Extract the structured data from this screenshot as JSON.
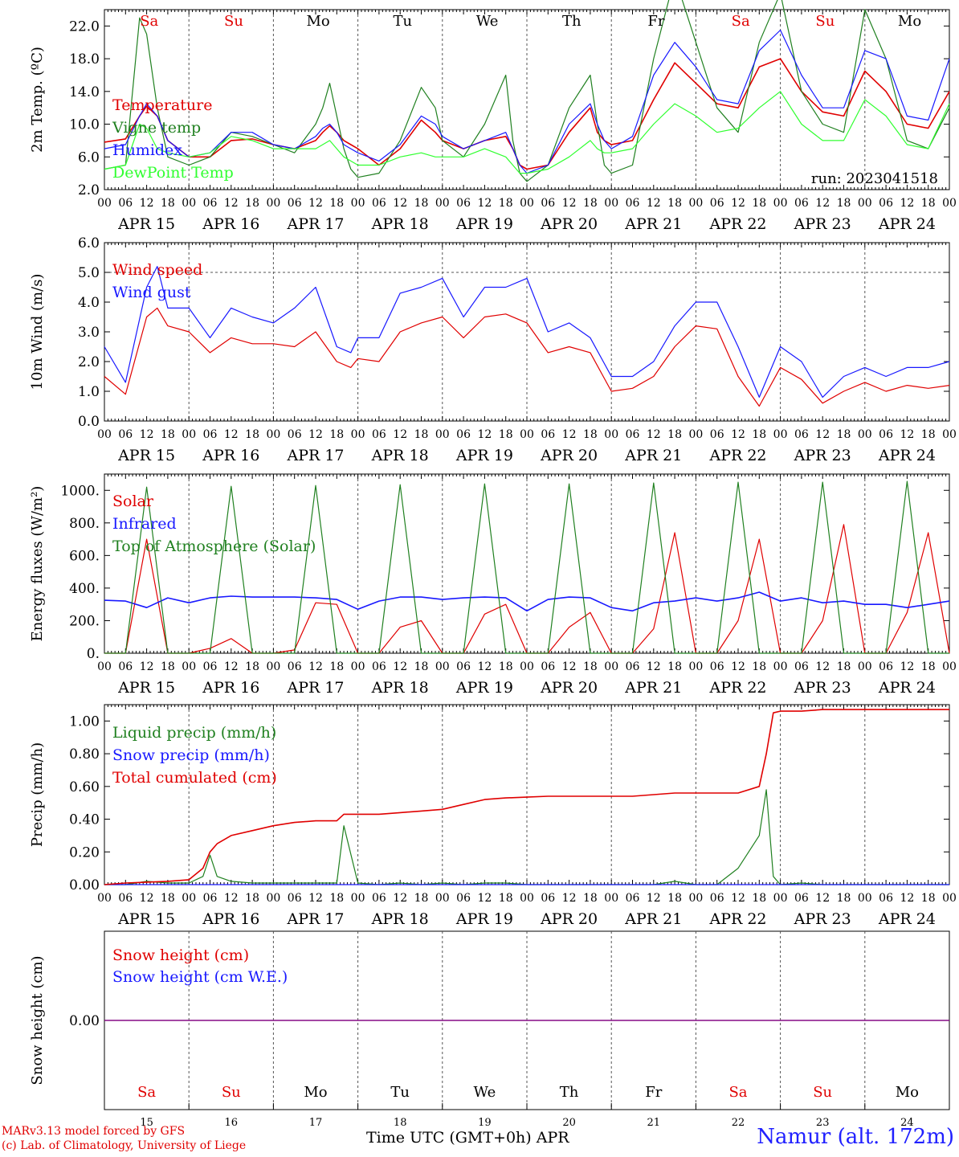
{
  "day_letters": [
    {
      "label": "Sa",
      "color": "#e00000"
    },
    {
      "label": "Su",
      "color": "#e00000"
    },
    {
      "label": "Mo",
      "color": "#000000"
    },
    {
      "label": "Tu",
      "color": "#000000"
    },
    {
      "label": "We",
      "color": "#000000"
    },
    {
      "label": "Th",
      "color": "#000000"
    },
    {
      "label": "Fr",
      "color": "#000000"
    },
    {
      "label": "Sa",
      "color": "#e00000"
    },
    {
      "label": "Su",
      "color": "#e00000"
    },
    {
      "label": "Mo",
      "color": "#000000"
    }
  ],
  "date_labels": [
    "APR 15",
    "APR 16",
    "APR 17",
    "APR 18",
    "APR 19",
    "APR 20",
    "APR 21",
    "APR 22",
    "APR 23",
    "APR 24"
  ],
  "hour_ticks": [
    "00",
    "06",
    "12",
    "18"
  ],
  "day_numbers": [
    "15",
    "16",
    "17",
    "18",
    "19",
    "20",
    "21",
    "22",
    "23",
    "24"
  ],
  "footer": {
    "credit_line1": "MARv3.13 model forced by GFS",
    "credit_line2": "(c) Lab. of Climatology, University of Liege",
    "xaxis_title": "Time UTC (GMT+0h) APR",
    "station": "Namur (alt. 172m)"
  },
  "colors": {
    "red": "#e00000",
    "green": "#208020",
    "lightgreen": "#30ff30",
    "blue": "#1818ff",
    "purple": "#800080"
  },
  "chart_data": [
    {
      "type": "line",
      "ylabel": "2m Temp. (ºC)",
      "yticks": [
        "2.0",
        "6.0",
        "10.0",
        "14.0",
        "18.0",
        "22.0"
      ],
      "ylim": [
        2,
        24
      ],
      "annotation": "run: 2023041518",
      "x_hours_from_apr15_00utc": [
        0,
        6,
        10,
        12,
        15,
        18,
        24,
        30,
        36,
        42,
        48,
        54,
        60,
        62,
        64,
        66,
        68,
        70,
        72,
        78,
        84,
        90,
        94,
        96,
        102,
        108,
        114,
        116,
        118,
        120,
        126,
        132,
        138,
        140,
        142,
        144,
        150,
        156,
        162,
        168,
        174,
        180,
        186,
        192,
        198,
        204,
        210,
        216,
        222,
        228,
        234,
        240
      ],
      "series": [
        {
          "name": "Temperature",
          "color": "#e00000",
          "values": [
            7.8,
            8.2,
            11.0,
            12.2,
            11.0,
            8.0,
            6.0,
            6.0,
            8.0,
            8.2,
            7.5,
            7.0,
            8.0,
            9.0,
            9.8,
            9.0,
            8.0,
            7.5,
            7.0,
            5.0,
            7.0,
            10.5,
            9.0,
            8.0,
            7.0,
            8.0,
            8.5,
            7.0,
            5.0,
            4.5,
            5.0,
            9.0,
            12.0,
            9.0,
            8.0,
            7.5,
            8.0,
            13.0,
            17.5,
            15.0,
            12.5,
            12.0,
            17.0,
            18.0,
            14.0,
            11.5,
            11.0,
            16.5,
            14.0,
            10.0,
            9.5,
            14.0
          ]
        },
        {
          "name": "Vigne temp",
          "color": "#208020",
          "values": [
            4.5,
            5.0,
            23.0,
            21.0,
            12.0,
            6.0,
            5.0,
            6.0,
            9.0,
            8.5,
            7.5,
            6.5,
            10.0,
            12.0,
            15.0,
            11.0,
            7.0,
            4.5,
            3.5,
            4.0,
            8.0,
            14.5,
            12.0,
            8.0,
            6.0,
            10.0,
            16.0,
            8.0,
            4.0,
            3.0,
            5.0,
            12.0,
            16.0,
            10.0,
            5.0,
            4.0,
            5.0,
            18.0,
            28.0,
            20.0,
            12.0,
            9.0,
            20.0,
            26.0,
            14.0,
            10.0,
            9.0,
            24.0,
            18.0,
            8.0,
            7.0,
            12.0
          ]
        },
        {
          "name": "Humidex",
          "color": "#1818ff",
          "values": [
            7.0,
            7.5,
            11.0,
            12.5,
            11.0,
            8.0,
            6.0,
            6.5,
            9.0,
            9.0,
            7.5,
            7.0,
            8.5,
            9.5,
            10.0,
            9.0,
            7.5,
            7.0,
            6.5,
            5.5,
            7.5,
            11.0,
            10.0,
            8.5,
            7.0,
            8.0,
            9.0,
            7.0,
            5.0,
            4.0,
            5.0,
            10.0,
            12.5,
            10.0,
            8.0,
            7.0,
            8.5,
            16.0,
            20.0,
            17.0,
            13.0,
            12.5,
            19.0,
            21.5,
            16.0,
            12.0,
            12.0,
            19.0,
            18.0,
            11.0,
            10.5,
            18.0
          ]
        },
        {
          "name": "DewPoint Temp",
          "color": "#30ff30",
          "values": [
            4.5,
            5.0,
            10.0,
            9.5,
            7.0,
            6.5,
            6.0,
            6.5,
            8.5,
            8.0,
            7.0,
            7.0,
            7.0,
            7.5,
            8.0,
            7.0,
            6.0,
            5.5,
            5.0,
            5.0,
            6.0,
            6.5,
            6.0,
            6.0,
            6.0,
            7.0,
            6.0,
            5.0,
            4.0,
            4.0,
            4.5,
            6.0,
            8.0,
            7.0,
            6.5,
            6.5,
            7.0,
            10.0,
            12.5,
            11.0,
            9.0,
            9.5,
            12.0,
            14.0,
            10.0,
            8.0,
            8.0,
            13.0,
            11.0,
            7.5,
            7.0,
            12.5
          ]
        }
      ]
    },
    {
      "type": "line",
      "ylabel": "10m Wind (m/s)",
      "yticks": [
        "0.0",
        "1.0",
        "2.0",
        "3.0",
        "4.0",
        "5.0",
        "6.0"
      ],
      "ylim": [
        0,
        6
      ],
      "x_hours_from_apr15_00utc": [
        0,
        6,
        12,
        15,
        18,
        24,
        30,
        36,
        42,
        48,
        54,
        60,
        66,
        70,
        72,
        78,
        84,
        90,
        96,
        102,
        108,
        114,
        120,
        126,
        132,
        138,
        144,
        150,
        156,
        162,
        168,
        174,
        180,
        186,
        192,
        198,
        204,
        210,
        216,
        222,
        228,
        234,
        240
      ],
      "series": [
        {
          "name": "Wind speed",
          "color": "#e00000",
          "values": [
            1.5,
            0.9,
            3.5,
            3.8,
            3.2,
            3.0,
            2.3,
            2.8,
            2.6,
            2.6,
            2.5,
            3.0,
            2.0,
            1.8,
            2.1,
            2.0,
            3.0,
            3.3,
            3.5,
            2.8,
            3.5,
            3.6,
            3.3,
            2.3,
            2.5,
            2.3,
            1.0,
            1.1,
            1.5,
            2.5,
            3.2,
            3.1,
            1.5,
            0.5,
            1.8,
            1.4,
            0.6,
            1.0,
            1.3,
            1.0,
            1.2,
            1.1,
            1.2
          ]
        },
        {
          "name": "Wind gust",
          "color": "#1818ff",
          "values": [
            2.5,
            1.3,
            4.5,
            5.2,
            3.8,
            3.8,
            2.8,
            3.8,
            3.5,
            3.3,
            3.8,
            4.5,
            2.5,
            2.3,
            2.8,
            2.8,
            4.3,
            4.5,
            4.8,
            3.5,
            4.5,
            4.5,
            4.8,
            3.0,
            3.3,
            2.8,
            1.5,
            1.5,
            2.0,
            3.2,
            4.0,
            4.0,
            2.5,
            0.8,
            2.5,
            2.0,
            0.8,
            1.5,
            1.8,
            1.5,
            1.8,
            1.8,
            2.0
          ]
        }
      ]
    },
    {
      "type": "line",
      "ylabel": "Energy fluxes (W/m²)",
      "yticks": [
        "0.",
        "200.",
        "400.",
        "600.",
        "800.",
        "1000."
      ],
      "ylim": [
        0,
        1100
      ],
      "x_hours_from_apr15_00utc": [
        0,
        6,
        12,
        18,
        24,
        30,
        36,
        42,
        48,
        54,
        60,
        66,
        72,
        78,
        84,
        90,
        96,
        102,
        108,
        114,
        120,
        126,
        132,
        138,
        144,
        150,
        156,
        162,
        168,
        174,
        180,
        186,
        192,
        198,
        204,
        210,
        216,
        222,
        228,
        234,
        240
      ],
      "series": [
        {
          "name": "Solar",
          "color": "#e00000",
          "values": [
            0,
            0,
            700,
            0,
            0,
            30,
            90,
            0,
            0,
            20,
            310,
            300,
            0,
            0,
            160,
            200,
            0,
            0,
            240,
            300,
            0,
            0,
            160,
            250,
            0,
            0,
            150,
            740,
            0,
            0,
            200,
            700,
            0,
            0,
            200,
            790,
            0,
            0,
            250,
            740,
            0
          ]
        },
        {
          "name": "Infrared",
          "color": "#1818ff",
          "values": [
            325,
            320,
            280,
            340,
            310,
            340,
            350,
            345,
            345,
            345,
            340,
            330,
            270,
            320,
            345,
            345,
            330,
            340,
            345,
            340,
            260,
            330,
            345,
            340,
            280,
            260,
            310,
            320,
            340,
            320,
            340,
            375,
            320,
            340,
            310,
            320,
            300,
            300,
            280,
            300,
            320
          ]
        },
        {
          "name": "Top of Atmosphere (Solar)",
          "color": "#208020",
          "values": [
            0,
            0,
            1020,
            0,
            0,
            0,
            1025,
            0,
            0,
            0,
            1030,
            0,
            0,
            0,
            1035,
            0,
            0,
            0,
            1040,
            0,
            0,
            0,
            1040,
            0,
            0,
            0,
            1045,
            0,
            0,
            0,
            1050,
            0,
            0,
            0,
            1050,
            0,
            0,
            0,
            1055,
            0,
            0
          ]
        }
      ]
    },
    {
      "type": "line",
      "ylabel": "Precip (mm/h)",
      "yticks": [
        "0.00",
        "0.20",
        "0.40",
        "0.60",
        "0.80",
        "1.00"
      ],
      "ylim": [
        0,
        1.1
      ],
      "x_hours_from_apr15_00utc": [
        0,
        6,
        12,
        18,
        24,
        28,
        30,
        32,
        36,
        42,
        48,
        54,
        60,
        66,
        68,
        72,
        78,
        84,
        90,
        96,
        102,
        108,
        114,
        120,
        126,
        132,
        138,
        144,
        150,
        156,
        162,
        168,
        174,
        180,
        186,
        188,
        190,
        192,
        198,
        204,
        210,
        216,
        222,
        228,
        234,
        240
      ],
      "series": [
        {
          "name": "Liquid precip (mm/h)",
          "color": "#208020",
          "values": [
            0,
            0,
            0.02,
            0.01,
            0.01,
            0.05,
            0.18,
            0.05,
            0.02,
            0.01,
            0.01,
            0.01,
            0.01,
            0.01,
            0.36,
            0.01,
            0,
            0.01,
            0,
            0.01,
            0,
            0.01,
            0.01,
            0,
            0,
            0,
            0,
            0,
            0,
            0,
            0.02,
            0,
            0,
            0.1,
            0.3,
            0.58,
            0.05,
            0,
            0.01,
            0,
            0,
            0,
            0,
            0,
            0,
            0
          ]
        },
        {
          "name": "Snow precip (mm/h)",
          "color": "#1818ff",
          "values": [
            0,
            0,
            0,
            0,
            0,
            0,
            0,
            0,
            0,
            0,
            0,
            0,
            0,
            0,
            0,
            0,
            0,
            0,
            0,
            0,
            0,
            0,
            0,
            0,
            0,
            0,
            0,
            0,
            0,
            0,
            0,
            0,
            0,
            0,
            0,
            0,
            0,
            0,
            0,
            0,
            0,
            0,
            0,
            0,
            0,
            0
          ]
        },
        {
          "name": "Total cumulated (cm)",
          "color": "#e00000",
          "values": [
            0,
            0.01,
            0.015,
            0.02,
            0.03,
            0.1,
            0.2,
            0.25,
            0.3,
            0.33,
            0.36,
            0.38,
            0.39,
            0.39,
            0.43,
            0.43,
            0.43,
            0.44,
            0.45,
            0.46,
            0.49,
            0.52,
            0.53,
            0.535,
            0.54,
            0.54,
            0.54,
            0.54,
            0.54,
            0.55,
            0.56,
            0.56,
            0.56,
            0.56,
            0.6,
            0.8,
            1.05,
            1.06,
            1.06,
            1.07,
            1.07,
            1.07,
            1.07,
            1.07,
            1.07,
            1.07
          ]
        }
      ]
    },
    {
      "type": "line",
      "ylabel": "Snow height (cm)",
      "yticks": [
        "0.00"
      ],
      "ylim": [
        -1,
        1
      ],
      "x_hours_from_apr15_00utc": [
        0,
        240
      ],
      "series": [
        {
          "name": "Snow height (cm)",
          "color": "#e00000",
          "values": [
            0,
            0
          ]
        },
        {
          "name": "Snow height (cm W.E.)",
          "color": "#1818ff",
          "values": [
            0,
            0
          ]
        }
      ]
    }
  ]
}
